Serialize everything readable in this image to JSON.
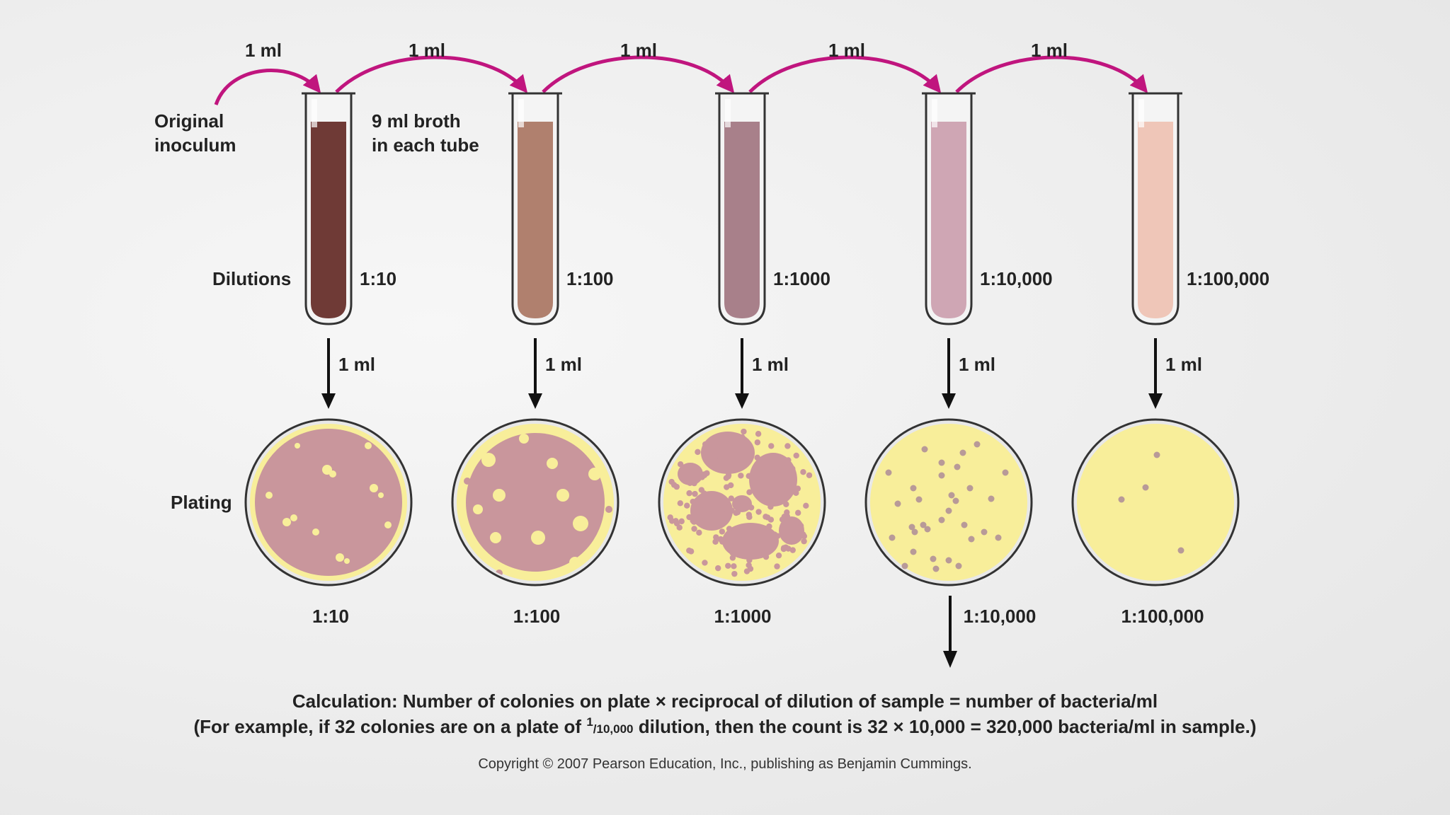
{
  "labels": {
    "original_inoculum_line1": "Original",
    "original_inoculum_line2": "inoculum",
    "broth_line1": "9 ml broth",
    "broth_line2": "in each tube",
    "dilutions": "Dilutions",
    "plating": "Plating"
  },
  "transfers": [
    "1 ml",
    "1 ml",
    "1 ml",
    "1 ml",
    "1 ml"
  ],
  "tubes": [
    {
      "dilution": "1:10",
      "transfer": "1 ml",
      "color": "#6f3a36"
    },
    {
      "dilution": "1:100",
      "transfer": "1 ml",
      "color": "#b0806e"
    },
    {
      "dilution": "1:1000",
      "transfer": "1 ml",
      "color": "#a8808a"
    },
    {
      "dilution": "1:10,000",
      "transfer": "1 ml",
      "color": "#cfa6b4"
    },
    {
      "dilution": "1:100,000",
      "transfer": "1 ml",
      "color": "#efc6b8"
    }
  ],
  "plates": [
    {
      "dilution": "1:10"
    },
    {
      "dilution": "1:100"
    },
    {
      "dilution": "1:1000"
    },
    {
      "dilution": "1:10,000"
    },
    {
      "dilution": "1:100,000"
    }
  ],
  "colors": {
    "arrow_magenta": "#c0157e",
    "agar_yellow": "#f8ee9a",
    "colony_pink": "#c9969c",
    "colony_dot": "#b89a98"
  },
  "calculation": {
    "line1": "Calculation: Number of colonies on plate × reciprocal of dilution of sample = number of bacteria/ml",
    "line2_prefix": "(For example, if 32 colonies are on a plate of ",
    "fraction_numerator": "1",
    "fraction_denominator": "/10,000",
    "line2_suffix": " dilution, then the count is 32 × 10,000 = 320,000 bacteria/ml in sample.)"
  },
  "copyright": "Copyright © 2007 Pearson Education, Inc., publishing as Benjamin Cummings."
}
